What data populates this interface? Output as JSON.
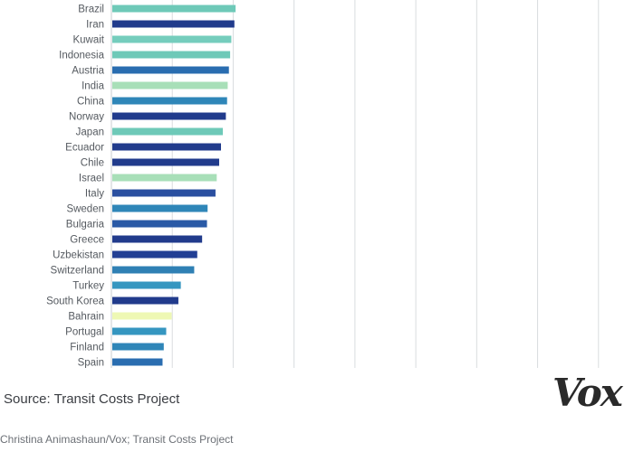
{
  "chart_data": {
    "type": "bar",
    "orientation": "horizontal",
    "categories": [
      "Brazil",
      "Iran",
      "Kuwait",
      "Indonesia",
      "Austria",
      "India",
      "China",
      "Norway",
      "Japan",
      "Ecuador",
      "Chile",
      "Israel",
      "Italy",
      "Sweden",
      "Bulgaria",
      "Greece",
      "Uzbekistan",
      "Switzerland",
      "Turkey",
      "South Korea",
      "Bahrain",
      "Portugal",
      "Finland",
      "Spain"
    ],
    "values": [
      204,
      202,
      197,
      195,
      193,
      191,
      190,
      188,
      183,
      180,
      177,
      173,
      171,
      158,
      157,
      149,
      141,
      136,
      114,
      110,
      99,
      90,
      86,
      84
    ],
    "colors": [
      "#6ec9b8",
      "#213b8c",
      "#75cdbd",
      "#6ec9b8",
      "#2a6db0",
      "#a8dfb8",
      "#2f86b8",
      "#213b8c",
      "#6ec9b8",
      "#213b8c",
      "#213b8c",
      "#a8dfb8",
      "#2a4fa0",
      "#2f86b8",
      "#2a5aa6",
      "#213b8c",
      "#223f94",
      "#2f80b4",
      "#3596c0",
      "#213b8c",
      "#eef8b4",
      "#3596c0",
      "#2f86b8",
      "#2a6db0"
    ],
    "xlim": [
      0,
      900
    ],
    "gridlines": [
      100,
      200,
      300,
      400,
      500,
      600,
      700,
      800
    ],
    "title": "",
    "xlabel": "",
    "ylabel": "",
    "source": "Source: Transit Costs Project",
    "credit": "Christina Animashaun/Vox; Transit Costs Project",
    "logo": "Vox"
  }
}
